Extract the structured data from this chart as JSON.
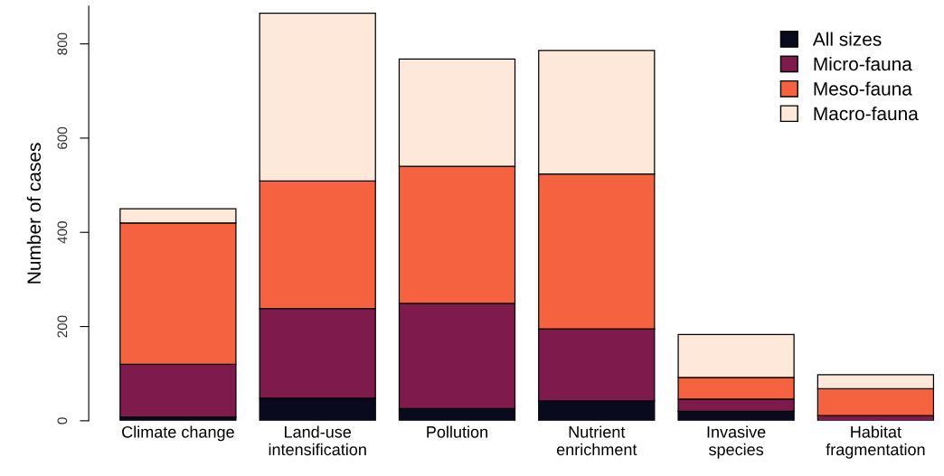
{
  "chart_data": {
    "type": "bar",
    "stacked": true,
    "ylabel": "Number of cases",
    "categories": [
      "Climate change",
      "Land-use\nintensification",
      "Pollution",
      "Nutrient\nenrichment",
      "Invasive\nspecies",
      "Habitat\nfragmentation"
    ],
    "series": [
      {
        "name": "All sizes",
        "color": "#0a0a1e",
        "values": [
          8,
          48,
          26,
          42,
          20,
          null
        ]
      },
      {
        "name": "Micro-fauna",
        "color": "#7f1a4d",
        "values": [
          112,
          190,
          223,
          153,
          26,
          11
        ]
      },
      {
        "name": "Meso-fauna",
        "color": "#f4623f",
        "values": [
          300,
          271,
          291,
          329,
          46,
          57
        ]
      },
      {
        "name": "Macro-fauna",
        "color": "#fde8da",
        "values": [
          30,
          356,
          228,
          262,
          91,
          30
        ]
      }
    ],
    "ylim": [
      0,
      880
    ],
    "yticks": [
      0,
      200,
      400,
      600,
      800
    ],
    "grid": false,
    "legend": "top right"
  }
}
